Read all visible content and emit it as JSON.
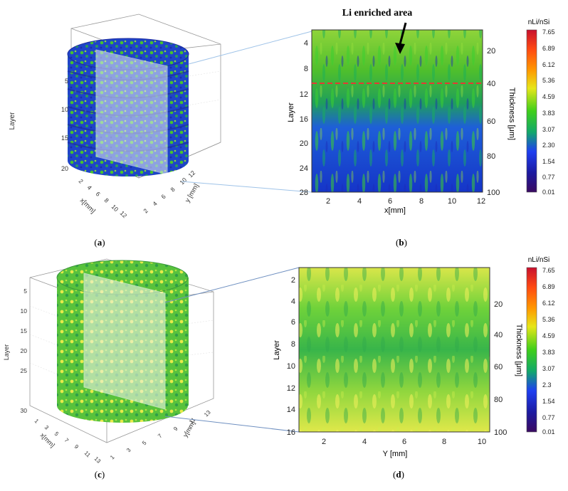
{
  "panels": [
    {
      "id": "a",
      "caption_pre": "(",
      "caption_letter": "a",
      "caption_post": ")",
      "axis_labels": {
        "z": "Layer",
        "x": "x[mm]",
        "y": "y [mm]"
      },
      "z_ticks": [
        "5",
        "10",
        "15",
        "20"
      ],
      "x_ticks": [
        "2",
        "4",
        "6",
        "8",
        "10",
        "12"
      ],
      "y_ticks": [
        "2",
        "4",
        "6",
        "8",
        "10",
        "12"
      ],
      "palette": "blue-green"
    },
    {
      "id": "b",
      "caption_pre": "(",
      "caption_letter": "b",
      "caption_post": ")",
      "annotation": "Li enriched area",
      "x_label": "x[mm]",
      "y_label": "Layer",
      "y2_label": "Thickness [μm]",
      "x_ticks": [
        "2",
        "4",
        "6",
        "8",
        "10",
        "12"
      ],
      "y_ticks": [
        "4",
        "8",
        "12",
        "16",
        "20",
        "24",
        "28"
      ],
      "y2_ticks": [
        "20",
        "40",
        "60",
        "80",
        "100"
      ],
      "colorbar": {
        "title": "nLi/nSi",
        "ticks": [
          "7.65",
          "6.89",
          "6.12",
          "5.36",
          "4.59",
          "3.83",
          "3.07",
          "2.30",
          "1.54",
          "0.77",
          "0.01"
        ]
      }
    },
    {
      "id": "c",
      "caption_pre": "(",
      "caption_letter": "c",
      "caption_post": ")",
      "axis_labels": {
        "z": "Layer",
        "x": "x[mm]",
        "y": "y[mm]"
      },
      "z_ticks": [
        "5",
        "10",
        "15",
        "20",
        "25",
        "30"
      ],
      "x_ticks": [
        "1",
        "3",
        "5",
        "7",
        "9",
        "11",
        "13"
      ],
      "y_ticks": [
        "1",
        "3",
        "5",
        "7",
        "9",
        "11",
        "13"
      ],
      "palette": "yellow-green"
    },
    {
      "id": "d",
      "caption_pre": "(",
      "caption_letter": "d",
      "caption_post": ")",
      "x_label": "Y [mm]",
      "y_label": "Layer",
      "y2_label": "Thickness [μm]",
      "x_ticks": [
        "2",
        "4",
        "6",
        "8",
        "10"
      ],
      "y_ticks": [
        "2",
        "4",
        "6",
        "8",
        "10",
        "12",
        "14",
        "16"
      ],
      "y2_ticks": [
        "20",
        "40",
        "60",
        "80",
        "100"
      ],
      "colorbar": {
        "title": "nLi/nSi",
        "ticks": [
          "7.65",
          "6.89",
          "6.12",
          "5.36",
          "4.59",
          "3.83",
          "3.07",
          "2.3",
          "1.54",
          "0.77",
          "0.01"
        ]
      }
    }
  ],
  "colors": {
    "blue_deep": "#1a2fd0",
    "green": "#3fbf2a",
    "yellow": "#e8ec3a",
    "marker_line": "#e53935",
    "leader_line": "#9fc3e8"
  }
}
